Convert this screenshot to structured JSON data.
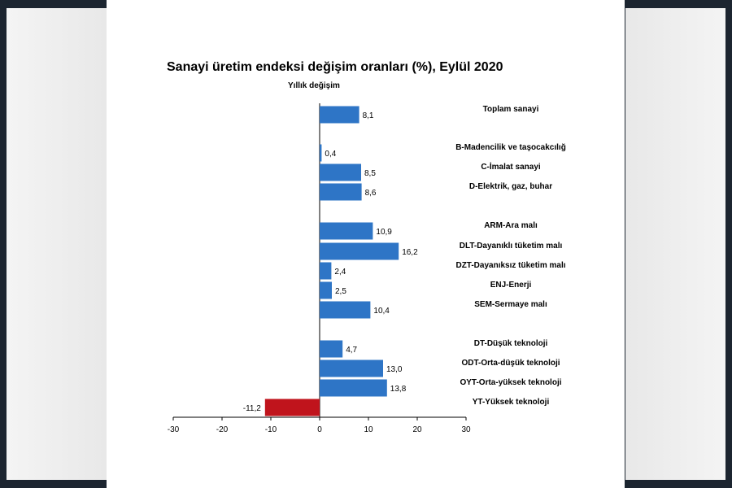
{
  "chart_data": {
    "type": "bar",
    "orientation": "horizontal",
    "title": "Sanayi üretim endeksi  değişim oranları (%), Eylül 2020",
    "subtitle": "Yıllık değişim",
    "xlim": [
      -30,
      30
    ],
    "xticks": [
      -30,
      -20,
      -10,
      0,
      10,
      20,
      30
    ],
    "colors": {
      "positive": "#2e75c6",
      "negative": "#c0141c"
    },
    "categories": [
      "Toplam sanayi",
      "B-Madencilik ve taşocakcılığ",
      "C-İmalat sanayi",
      "D-Elektrik, gaz, buhar",
      "ARM-Ara malı",
      "DLT-Dayanıklı tüketim malı",
      "DZT-Dayanıksız tüketim malı",
      "ENJ-Enerji",
      "SEM-Sermaye malı",
      "DT-Düşük teknoloji",
      "ODT-Orta-düşük teknoloji",
      "OYT-Orta-yüksek teknoloji",
      "YT-Yüksek teknoloji"
    ],
    "values": [
      8.1,
      0.4,
      8.5,
      8.6,
      10.9,
      16.2,
      2.4,
      2.5,
      10.4,
      4.7,
      13.0,
      13.8,
      -11.2
    ],
    "value_labels": [
      "8,1",
      "0,4",
      "8,5",
      "8,6",
      "10,9",
      "16,2",
      "2,4",
      "2,5",
      "10,4",
      "4,7",
      "13,0",
      "13,8",
      "-11,2"
    ],
    "groups": [
      [
        0
      ],
      [
        1,
        2,
        3
      ],
      [
        4,
        5,
        6,
        7,
        8
      ],
      [
        9,
        10,
        11,
        12
      ]
    ]
  }
}
